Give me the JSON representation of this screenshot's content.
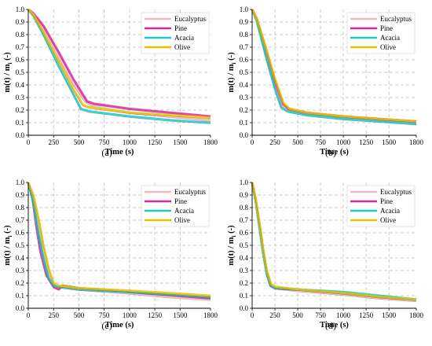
{
  "series_names": [
    "Eucalyptus",
    "Pine",
    "Acacia",
    "Olive"
  ],
  "series_colors": [
    "#f4b9bf",
    "#e0249b",
    "#1fc7c7",
    "#e8c400"
  ],
  "chart_data": [
    {
      "panel_label": "(a)",
      "type": "line",
      "xlabel": "Time (s)",
      "ylabel": "m(t) / m",
      "ylabel_sub": "i",
      "ylabel_tail": " (-)",
      "xlim": [
        0,
        1800
      ],
      "ylim": [
        0,
        1.0
      ],
      "xticks": [
        0,
        250,
        500,
        750,
        1000,
        1250,
        1500,
        1800
      ],
      "yticks": [
        0,
        0.1,
        0.2,
        0.3,
        0.4,
        0.5,
        0.6,
        0.7,
        0.8,
        0.9,
        1.0
      ],
      "grid": true,
      "legend_position": "top-right",
      "series": [
        {
          "name": "Eucalyptus",
          "x": [
            0,
            50,
            150,
            300,
            450,
            560,
            650,
            1000,
            1400,
            1800
          ],
          "y": [
            1.0,
            0.96,
            0.84,
            0.62,
            0.4,
            0.27,
            0.23,
            0.18,
            0.15,
            0.12
          ]
        },
        {
          "name": "Pine",
          "x": [
            0,
            50,
            150,
            300,
            450,
            580,
            650,
            1000,
            1400,
            1800
          ],
          "y": [
            1.0,
            0.97,
            0.87,
            0.66,
            0.44,
            0.27,
            0.25,
            0.21,
            0.18,
            0.15
          ]
        },
        {
          "name": "Acacia",
          "x": [
            0,
            50,
            150,
            300,
            450,
            520,
            600,
            1000,
            1400,
            1800
          ],
          "y": [
            1.0,
            0.95,
            0.8,
            0.55,
            0.32,
            0.21,
            0.19,
            0.15,
            0.12,
            0.1
          ]
        },
        {
          "name": "Olive",
          "x": [
            0,
            50,
            150,
            300,
            450,
            540,
            620,
            1000,
            1400,
            1800
          ],
          "y": [
            1.0,
            0.96,
            0.82,
            0.59,
            0.36,
            0.24,
            0.22,
            0.18,
            0.16,
            0.14
          ]
        }
      ]
    },
    {
      "panel_label": "(b)",
      "type": "line",
      "xlabel": "Time (s)",
      "ylabel": "m(t) / m",
      "ylabel_sub": "i",
      "ylabel_tail": " (-)",
      "xlim": [
        0,
        1800
      ],
      "ylim": [
        0,
        1.0
      ],
      "xticks": [
        0,
        250,
        500,
        750,
        1000,
        1250,
        1500,
        1800
      ],
      "yticks": [
        0,
        0.1,
        0.2,
        0.3,
        0.4,
        0.5,
        0.6,
        0.7,
        0.8,
        0.9,
        1.0
      ],
      "grid": true,
      "legend_position": "top-right",
      "series": [
        {
          "name": "Eucalyptus",
          "x": [
            0,
            50,
            150,
            250,
            330,
            400,
            600,
            1000,
            1400,
            1800
          ],
          "y": [
            1.0,
            0.92,
            0.66,
            0.4,
            0.24,
            0.2,
            0.17,
            0.14,
            0.12,
            0.1
          ]
        },
        {
          "name": "Pine",
          "x": [
            0,
            50,
            150,
            250,
            340,
            400,
            600,
            1000,
            1400,
            1800
          ],
          "y": [
            1.0,
            0.93,
            0.68,
            0.43,
            0.25,
            0.21,
            0.18,
            0.15,
            0.13,
            0.11
          ]
        },
        {
          "name": "Acacia",
          "x": [
            0,
            50,
            150,
            250,
            320,
            390,
            600,
            1000,
            1400,
            1800
          ],
          "y": [
            1.0,
            0.91,
            0.63,
            0.37,
            0.22,
            0.19,
            0.16,
            0.13,
            0.11,
            0.09
          ]
        },
        {
          "name": "Olive",
          "x": [
            0,
            50,
            150,
            250,
            340,
            410,
            600,
            1000,
            1400,
            1800
          ],
          "y": [
            1.0,
            0.93,
            0.7,
            0.45,
            0.26,
            0.21,
            0.18,
            0.15,
            0.13,
            0.11
          ]
        }
      ]
    },
    {
      "panel_label": "(c)",
      "type": "line",
      "xlabel": "Time (s)",
      "ylabel": "m(t) / m",
      "ylabel_sub": "i",
      "ylabel_tail": " (-)",
      "xlim": [
        0,
        1800
      ],
      "ylim": [
        0,
        1.0
      ],
      "xticks": [
        0,
        250,
        500,
        750,
        1000,
        1250,
        1500,
        1800
      ],
      "yticks": [
        0,
        0.1,
        0.2,
        0.3,
        0.4,
        0.5,
        0.6,
        0.7,
        0.8,
        0.9,
        1.0
      ],
      "grid": true,
      "legend_position": "top-right",
      "series": [
        {
          "name": "Eucalyptus",
          "x": [
            0,
            50,
            100,
            150,
            200,
            250,
            300,
            500,
            1000,
            1400,
            1800
          ],
          "y": [
            1.0,
            0.85,
            0.62,
            0.42,
            0.26,
            0.19,
            0.17,
            0.15,
            0.12,
            0.09,
            0.07
          ]
        },
        {
          "name": "Pine",
          "x": [
            0,
            40,
            80,
            120,
            180,
            250,
            300,
            340,
            500,
            1000,
            1800
          ],
          "y": [
            1.0,
            0.88,
            0.65,
            0.45,
            0.26,
            0.17,
            0.15,
            0.18,
            0.16,
            0.13,
            0.08
          ]
        },
        {
          "name": "Acacia",
          "x": [
            0,
            50,
            100,
            150,
            200,
            250,
            300,
            500,
            1000,
            1400,
            1800
          ],
          "y": [
            1.0,
            0.84,
            0.6,
            0.4,
            0.24,
            0.18,
            0.17,
            0.15,
            0.13,
            0.11,
            0.09
          ]
        },
        {
          "name": "Olive",
          "x": [
            0,
            50,
            100,
            150,
            200,
            250,
            300,
            500,
            1000,
            1400,
            1800
          ],
          "y": [
            1.0,
            0.9,
            0.72,
            0.5,
            0.32,
            0.2,
            0.18,
            0.16,
            0.14,
            0.12,
            0.1
          ]
        }
      ]
    },
    {
      "panel_label": "(d)",
      "type": "line",
      "xlabel": "Time (s)",
      "ylabel": "m(t) / m",
      "ylabel_sub": "i",
      "ylabel_tail": " (-)",
      "xlim": [
        0,
        1800
      ],
      "ylim": [
        0,
        1.0
      ],
      "xticks": [
        0,
        250,
        500,
        750,
        1000,
        1250,
        1500,
        1800
      ],
      "yticks": [
        0,
        0.1,
        0.2,
        0.3,
        0.4,
        0.5,
        0.6,
        0.7,
        0.8,
        0.9,
        1.0
      ],
      "grid": true,
      "legend_position": "top-right",
      "series": [
        {
          "name": "Eucalyptus",
          "x": [
            0,
            40,
            80,
            120,
            160,
            200,
            250,
            500,
            1000,
            1400,
            1800
          ],
          "y": [
            1.0,
            0.85,
            0.65,
            0.45,
            0.28,
            0.18,
            0.16,
            0.14,
            0.11,
            0.08,
            0.06
          ]
        },
        {
          "name": "Pine",
          "x": [
            0,
            40,
            80,
            120,
            160,
            200,
            250,
            500,
            1000,
            1400,
            1800
          ],
          "y": [
            1.0,
            0.86,
            0.66,
            0.46,
            0.29,
            0.18,
            0.16,
            0.15,
            0.12,
            0.09,
            0.07
          ]
        },
        {
          "name": "Acacia",
          "x": [
            0,
            40,
            80,
            120,
            160,
            200,
            250,
            500,
            1000,
            1400,
            1800
          ],
          "y": [
            1.0,
            0.85,
            0.64,
            0.44,
            0.27,
            0.18,
            0.16,
            0.15,
            0.13,
            0.1,
            0.07
          ]
        },
        {
          "name": "Olive",
          "x": [
            0,
            40,
            80,
            120,
            160,
            210,
            260,
            500,
            1000,
            1400,
            1800
          ],
          "y": [
            1.0,
            0.87,
            0.68,
            0.48,
            0.3,
            0.19,
            0.17,
            0.15,
            0.12,
            0.09,
            0.07
          ]
        }
      ]
    }
  ]
}
